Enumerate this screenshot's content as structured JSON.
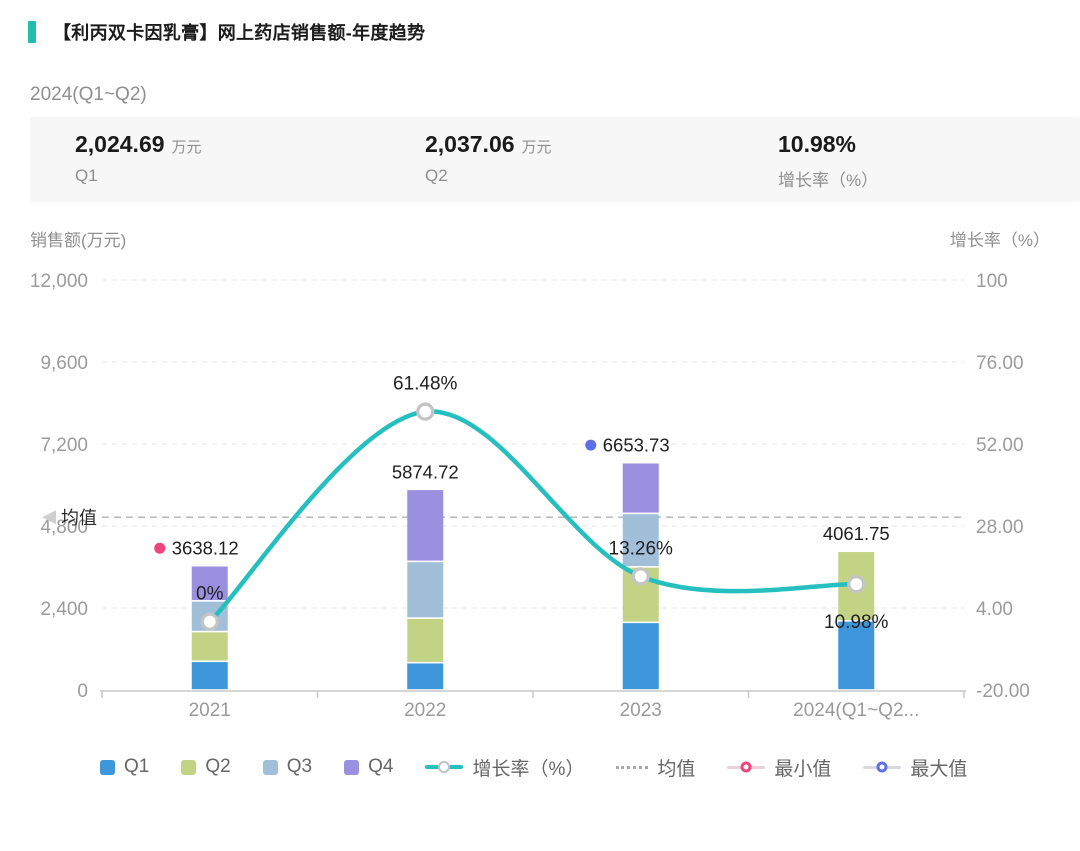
{
  "header": {
    "title": "【利丙双卡因乳膏】网上药店销售额-年度趋势",
    "accent_color": "#1EBFAE"
  },
  "subtitle": "2024(Q1~Q2)",
  "summary": {
    "stats": [
      {
        "value": "2,024.69",
        "unit": "万元",
        "label": "Q1"
      },
      {
        "value": "2,037.06",
        "unit": "万元",
        "label": "Q2"
      },
      {
        "value": "10.98%",
        "unit": "",
        "label": "增长率（%）"
      }
    ]
  },
  "chart_data": {
    "type": "bar",
    "title": "【利丙双卡因乳膏】网上药店销售额-年度趋势",
    "categories": [
      "2021",
      "2022",
      "2023",
      "2024(Q1~Q2..."
    ],
    "series": [
      {
        "name": "Q1",
        "color": "#3E96DB",
        "values": [
          840,
          800,
          1980,
          2024.69
        ]
      },
      {
        "name": "Q2",
        "color": "#C3D385",
        "values": [
          870,
          1305,
          1625,
          2037.06
        ]
      },
      {
        "name": "Q3",
        "color": "#A2BFD9",
        "values": [
          900,
          1660,
          1565,
          0
        ]
      },
      {
        "name": "Q4",
        "color": "#9B8FE0",
        "values": [
          1028.12,
          2109.72,
          1483.73,
          0
        ]
      }
    ],
    "totals": [
      3638.12,
      5874.72,
      6653.73,
      4061.75
    ],
    "total_labels": [
      "3638.12",
      "5874.72",
      "6653.73",
      "4061.75"
    ],
    "growth_line": {
      "name": "增长率（%）",
      "color": "#26BFBF",
      "values": [
        0,
        61.48,
        13.26,
        10.98
      ],
      "labels": [
        "0%",
        "61.48%",
        "13.26%",
        "10.98%"
      ],
      "label_side": [
        "above",
        "above",
        "above",
        "below"
      ]
    },
    "mean_line": {
      "label": "均值",
      "value": 5057.08
    },
    "min_point": {
      "label": "最小值",
      "category_index": 0,
      "color": "#F2437E"
    },
    "max_point": {
      "label": "最大值",
      "category_index": 2,
      "color": "#5E6FE8"
    },
    "left_axis": {
      "title": "销售额(万元)",
      "min": 0,
      "max": 12000,
      "ticks": [
        "12,000",
        "9,600",
        "7,200",
        "4,800",
        "2,400",
        "0"
      ]
    },
    "right_axis": {
      "title": "增长率（%）",
      "min": -20,
      "max": 100,
      "ticks": [
        "100",
        "76.00",
        "52.00",
        "28.00",
        "4.00",
        "-20.00"
      ]
    },
    "grid": "dashed horizontal gridlines, legend bottom"
  },
  "legend": {
    "items": [
      {
        "id": "q1",
        "label": "Q1",
        "type": "square",
        "color": "#3E96DB"
      },
      {
        "id": "q2",
        "label": "Q2",
        "type": "square",
        "color": "#C3D385"
      },
      {
        "id": "q3",
        "label": "Q3",
        "type": "square",
        "color": "#A2BFD9"
      },
      {
        "id": "q4",
        "label": "Q4",
        "type": "square",
        "color": "#9B8FE0"
      },
      {
        "id": "growth-rate",
        "label": "增长率（%）",
        "type": "line-marker",
        "color": "#26BFBF",
        "line_color": "#26BFBF"
      },
      {
        "id": "mean",
        "label": "均值",
        "type": "dotted-line",
        "color": "#a8a8a8",
        "line_color": "#a8a8a8"
      },
      {
        "id": "min-value",
        "label": "最小值",
        "type": "ring",
        "color": "#F2437E",
        "line_color": "#eccfda"
      },
      {
        "id": "max-value",
        "label": "最大值",
        "type": "ring",
        "color": "#5E6FE8",
        "line_color": "#d9d9e2"
      }
    ]
  }
}
